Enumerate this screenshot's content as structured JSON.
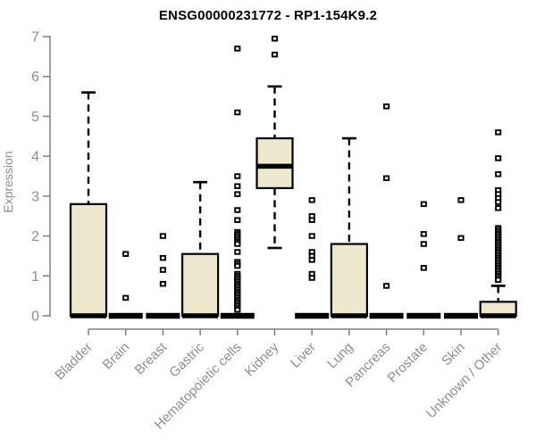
{
  "chart_data": {
    "type": "boxplot",
    "title": "ENSG00000231772 - RP1-154K9.2",
    "ylabel": "Expression",
    "xlabel": "",
    "ylim": [
      0,
      7
    ],
    "yticks": [
      0,
      1,
      2,
      3,
      4,
      5,
      6,
      7
    ],
    "grid": false,
    "legend": "none",
    "colors": {
      "box_fill": "#EDE7CD",
      "box_stroke": "#000000",
      "median": "#000000",
      "whisker": "#000000",
      "outlier_stroke": "#000000",
      "outlier_fill": "#ffffff",
      "axis": "#7f7f7f",
      "tick_label": "#8e8e8e",
      "title": "#000000",
      "background": "#ffffff"
    },
    "categories": [
      "Bladder",
      "Brain",
      "Breast",
      "Gastric",
      "Hematopoietic cells",
      "Kidney",
      "Liver",
      "Lung",
      "Pancreas",
      "Prostate",
      "Skin",
      "Unknown / Other"
    ],
    "boxes": [
      {
        "category": "Bladder",
        "q1": 0,
        "median": 0,
        "q3": 2.8,
        "whisker_low": 0,
        "whisker_high": 5.6,
        "outliers": []
      },
      {
        "category": "Brain",
        "q1": 0,
        "median": 0,
        "q3": 0,
        "whisker_low": 0,
        "whisker_high": 0,
        "outliers": [
          1.55,
          0.45
        ]
      },
      {
        "category": "Breast",
        "q1": 0,
        "median": 0,
        "q3": 0,
        "whisker_low": 0,
        "whisker_high": 0,
        "outliers": [
          2.0,
          1.45,
          1.15,
          0.8
        ]
      },
      {
        "category": "Gastric",
        "q1": 0,
        "median": 0,
        "q3": 1.55,
        "whisker_low": 0,
        "whisker_high": 3.35,
        "outliers": []
      },
      {
        "category": "Hematopoietic cells",
        "q1": 0,
        "median": 0,
        "q3": 0,
        "whisker_low": 0,
        "whisker_high": 0,
        "outliers": [
          6.7,
          5.1,
          3.5,
          3.25,
          3.05,
          2.65,
          2.4,
          2.1,
          2.05,
          2.0,
          1.95,
          1.9,
          1.85,
          1.8,
          1.6,
          1.35,
          1.3,
          1.25,
          1.05,
          1.0,
          0.95,
          0.9,
          0.85,
          0.8,
          0.75,
          0.7,
          0.65,
          0.6,
          0.55,
          0.5,
          0.45,
          0.4,
          0.35,
          0.3,
          0.25,
          0.2,
          0.15
        ]
      },
      {
        "category": "Kidney",
        "q1": 3.2,
        "median": 3.75,
        "q3": 4.45,
        "whisker_low": 1.7,
        "whisker_high": 5.75,
        "outliers": [
          6.95,
          6.55
        ]
      },
      {
        "category": "Liver",
        "q1": 0,
        "median": 0,
        "q3": 0,
        "whisker_low": 0,
        "whisker_high": 0,
        "outliers": [
          2.9,
          2.5,
          2.4,
          2.0,
          1.6,
          1.5,
          1.4,
          1.05,
          0.95
        ]
      },
      {
        "category": "Lung",
        "q1": 0,
        "median": 0,
        "q3": 1.8,
        "whisker_low": 0,
        "whisker_high": 4.45,
        "outliers": []
      },
      {
        "category": "Pancreas",
        "q1": 0,
        "median": 0,
        "q3": 0,
        "whisker_low": 0,
        "whisker_high": 0,
        "outliers": [
          5.25,
          3.45,
          0.75
        ]
      },
      {
        "category": "Prostate",
        "q1": 0,
        "median": 0,
        "q3": 0,
        "whisker_low": 0,
        "whisker_high": 0,
        "outliers": [
          2.8,
          2.05,
          1.8,
          1.2
        ]
      },
      {
        "category": "Skin",
        "q1": 0,
        "median": 0,
        "q3": 0,
        "whisker_low": 0,
        "whisker_high": 0,
        "outliers": [
          2.9,
          1.95
        ]
      },
      {
        "category": "Unknown / Other",
        "q1": 0,
        "median": 0,
        "q3": 0.35,
        "whisker_low": 0,
        "whisker_high": 0.75,
        "outliers": [
          4.6,
          3.95,
          3.55,
          3.15,
          3.05,
          2.95,
          2.85,
          2.7,
          2.2,
          2.15,
          2.1,
          2.05,
          2.0,
          1.95,
          1.9,
          1.85,
          1.8,
          1.75,
          1.7,
          1.65,
          1.6,
          1.55,
          1.5,
          1.45,
          1.4,
          1.35,
          1.3,
          1.25,
          1.2,
          1.15,
          1.1,
          1.05,
          1.0,
          0.95,
          0.9
        ]
      }
    ]
  }
}
